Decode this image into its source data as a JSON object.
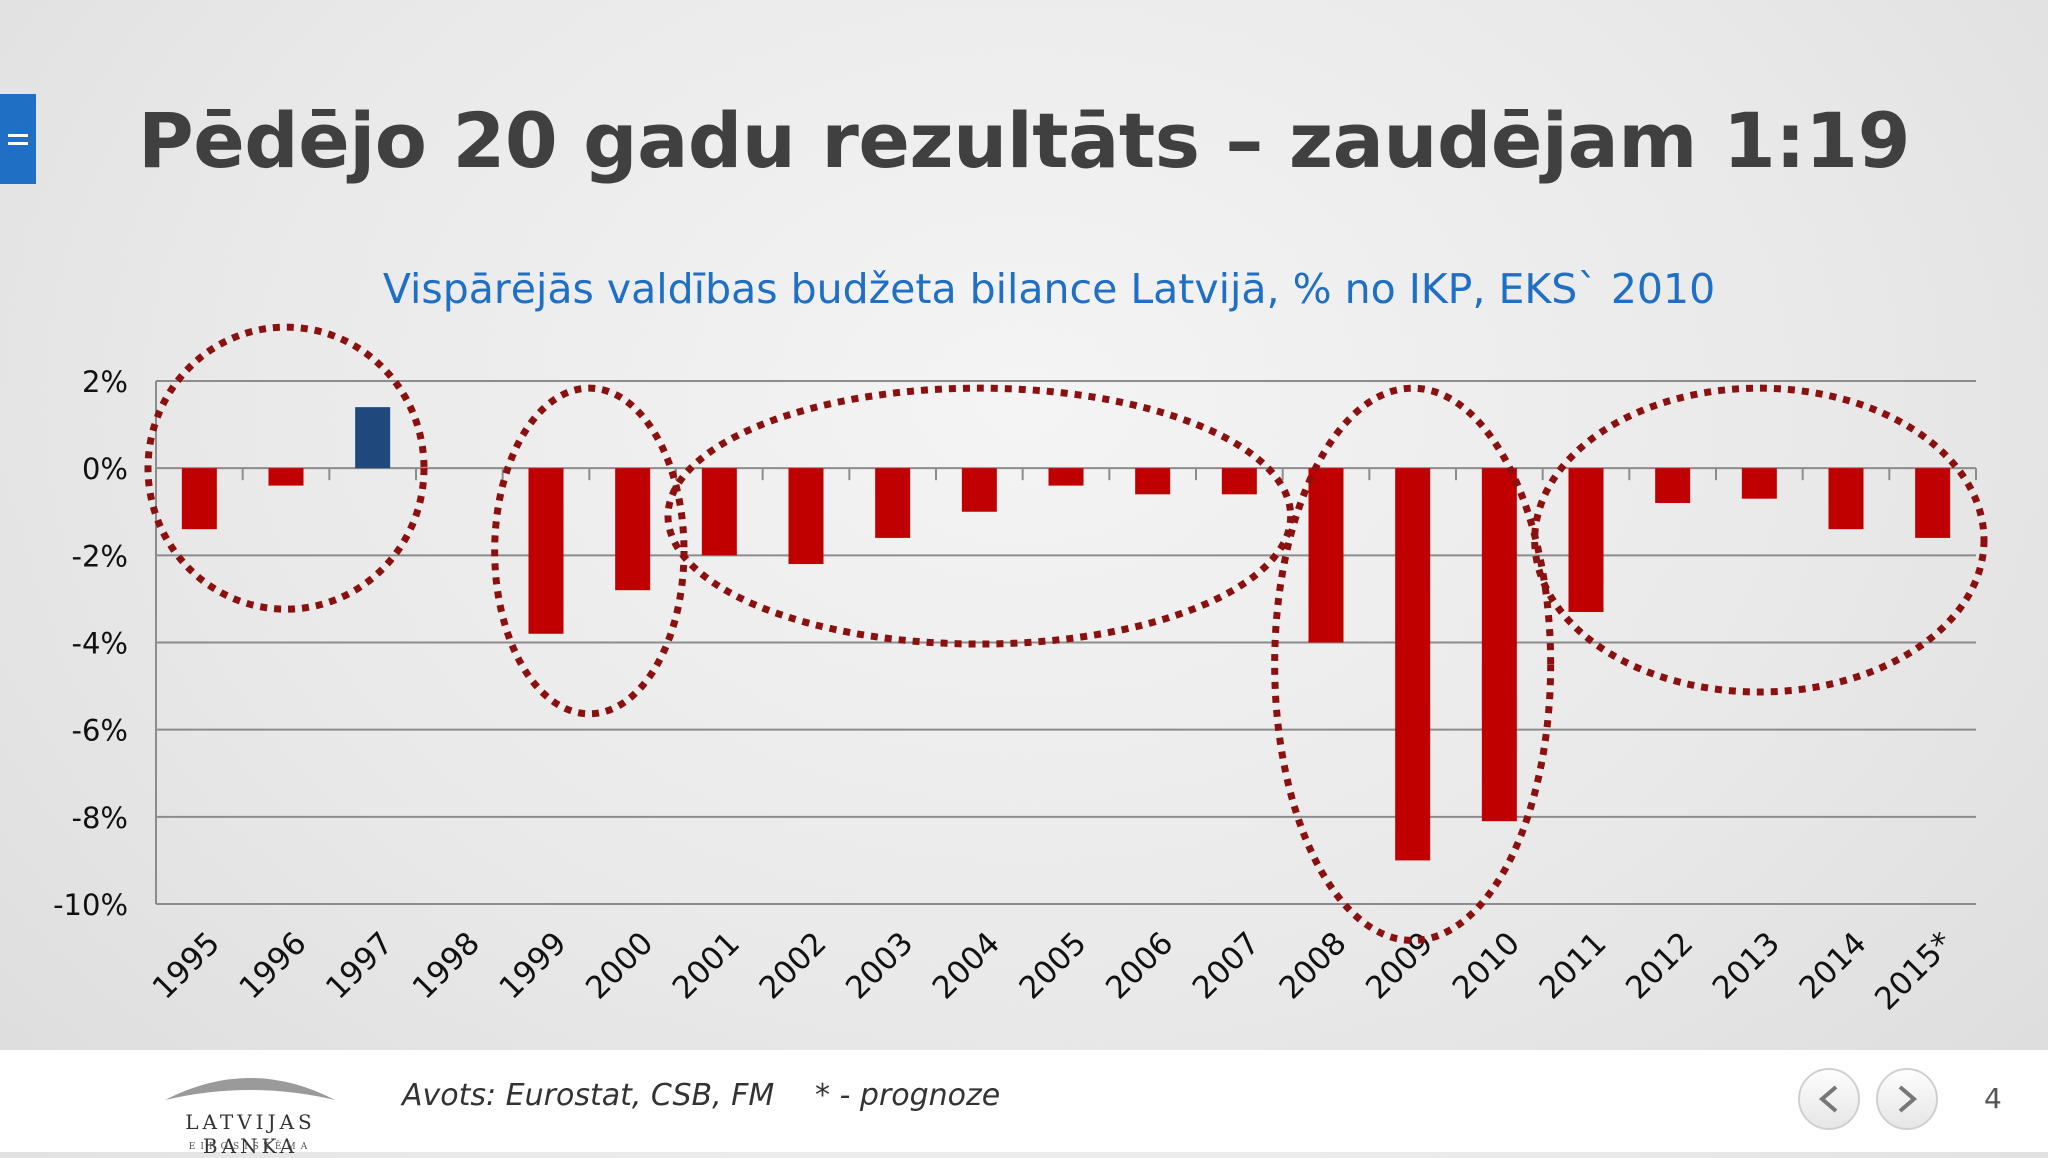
{
  "slide": {
    "title": "Pēdējo 20 gadu rezultāts – zaudējam 1:19",
    "page_number": "4"
  },
  "footer": {
    "source": "Avots: Eurostat, CSB, FM",
    "forecast_note": "* - prognoze",
    "logo_name": "LATVIJAS BANKA",
    "logo_sub": "EIROSISTĒMA",
    "prev_icon": "chevron-left-icon",
    "next_icon": "chevron-right-icon"
  },
  "colors": {
    "deficit": "#c00000",
    "surplus": "#1f497d",
    "title_blue": "#1f6fc4",
    "highlight": "#8b1111"
  },
  "chart_data": {
    "type": "bar",
    "title": "Vispārējās valdības budžeta bilance Latvijā, % no IKP, EKS` 2010",
    "categories": [
      "1995",
      "1996",
      "1997",
      "1998",
      "1999",
      "2000",
      "2001",
      "2002",
      "2003",
      "2004",
      "2005",
      "2006",
      "2007",
      "2008",
      "2009",
      "2010",
      "2011",
      "2012",
      "2013",
      "2014",
      "2015*"
    ],
    "values": [
      -1.4,
      -0.4,
      1.4,
      0,
      -3.8,
      -2.8,
      -2.0,
      -2.2,
      -1.6,
      -1.0,
      -0.4,
      -0.6,
      -0.6,
      -4.0,
      -9.0,
      -8.1,
      -3.3,
      -0.8,
      -0.7,
      -1.4,
      -1.6
    ],
    "ylim": [
      -10,
      2
    ],
    "yticks": [
      2,
      0,
      -2,
      -4,
      -6,
      -8,
      -10
    ],
    "ytick_labels": [
      "2%",
      "0%",
      "-2%",
      "-4%",
      "-6%",
      "-8%",
      "-10%"
    ],
    "grid": true,
    "legend": "none",
    "highlight_groups": [
      [
        "1995",
        "1997"
      ],
      [
        "1999",
        "2000"
      ],
      [
        "2001",
        "2007"
      ],
      [
        "2008",
        "2010"
      ],
      [
        "2011",
        "2015*"
      ]
    ]
  }
}
